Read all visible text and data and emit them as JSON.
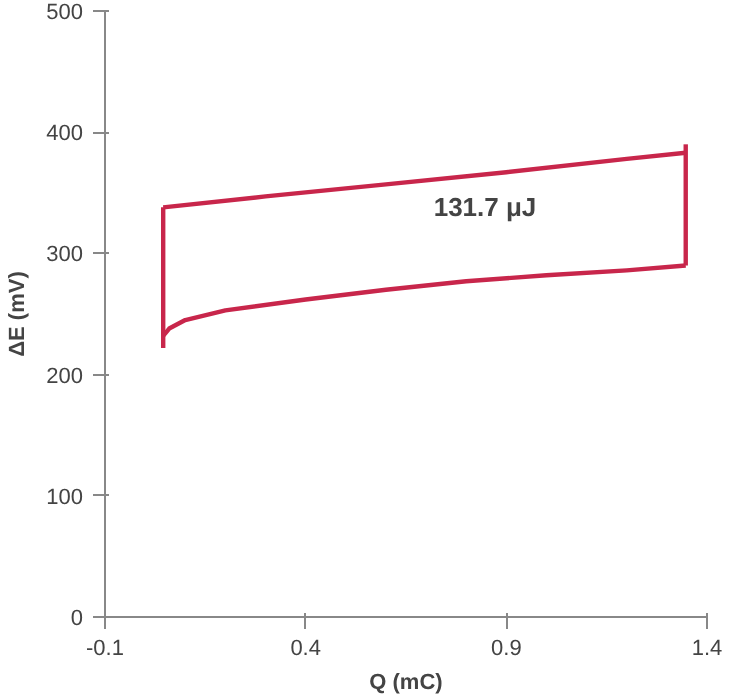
{
  "chart_data": {
    "type": "line",
    "xlabel": "Q (mC)",
    "ylabel": "ΔE (mV)",
    "series": [
      {
        "color": "#c8264b",
        "x": [
          0.045,
          0.045
        ],
        "values": [
          222,
          338
        ]
      },
      {
        "color": "#c8264b",
        "x": [
          0.045,
          0.3,
          0.6,
          0.9,
          1.2,
          1.347
        ],
        "values": [
          338,
          347,
          357,
          367,
          378,
          383
        ]
      },
      {
        "color": "#c8264b",
        "x": [
          1.347,
          1.347
        ],
        "values": [
          390,
          290
        ]
      },
      {
        "color": "#c8264b",
        "x": [
          0.045,
          0.06,
          0.1,
          0.2,
          0.4,
          0.6,
          0.8,
          1.0,
          1.2,
          1.347
        ],
        "values": [
          232,
          238,
          245,
          253,
          262,
          270,
          277,
          282,
          286,
          290
        ]
      }
    ],
    "xlim": [
      -0.1,
      1.4
    ],
    "xticks": [
      -0.1,
      0.4,
      0.9,
      1.4
    ],
    "ylim": [
      0,
      500
    ],
    "yticks": [
      0,
      100,
      200,
      300,
      400,
      500
    ],
    "grid": false,
    "marker": "none",
    "line_style": "solid",
    "annotations": [
      "131.7 μJ"
    ]
  }
}
